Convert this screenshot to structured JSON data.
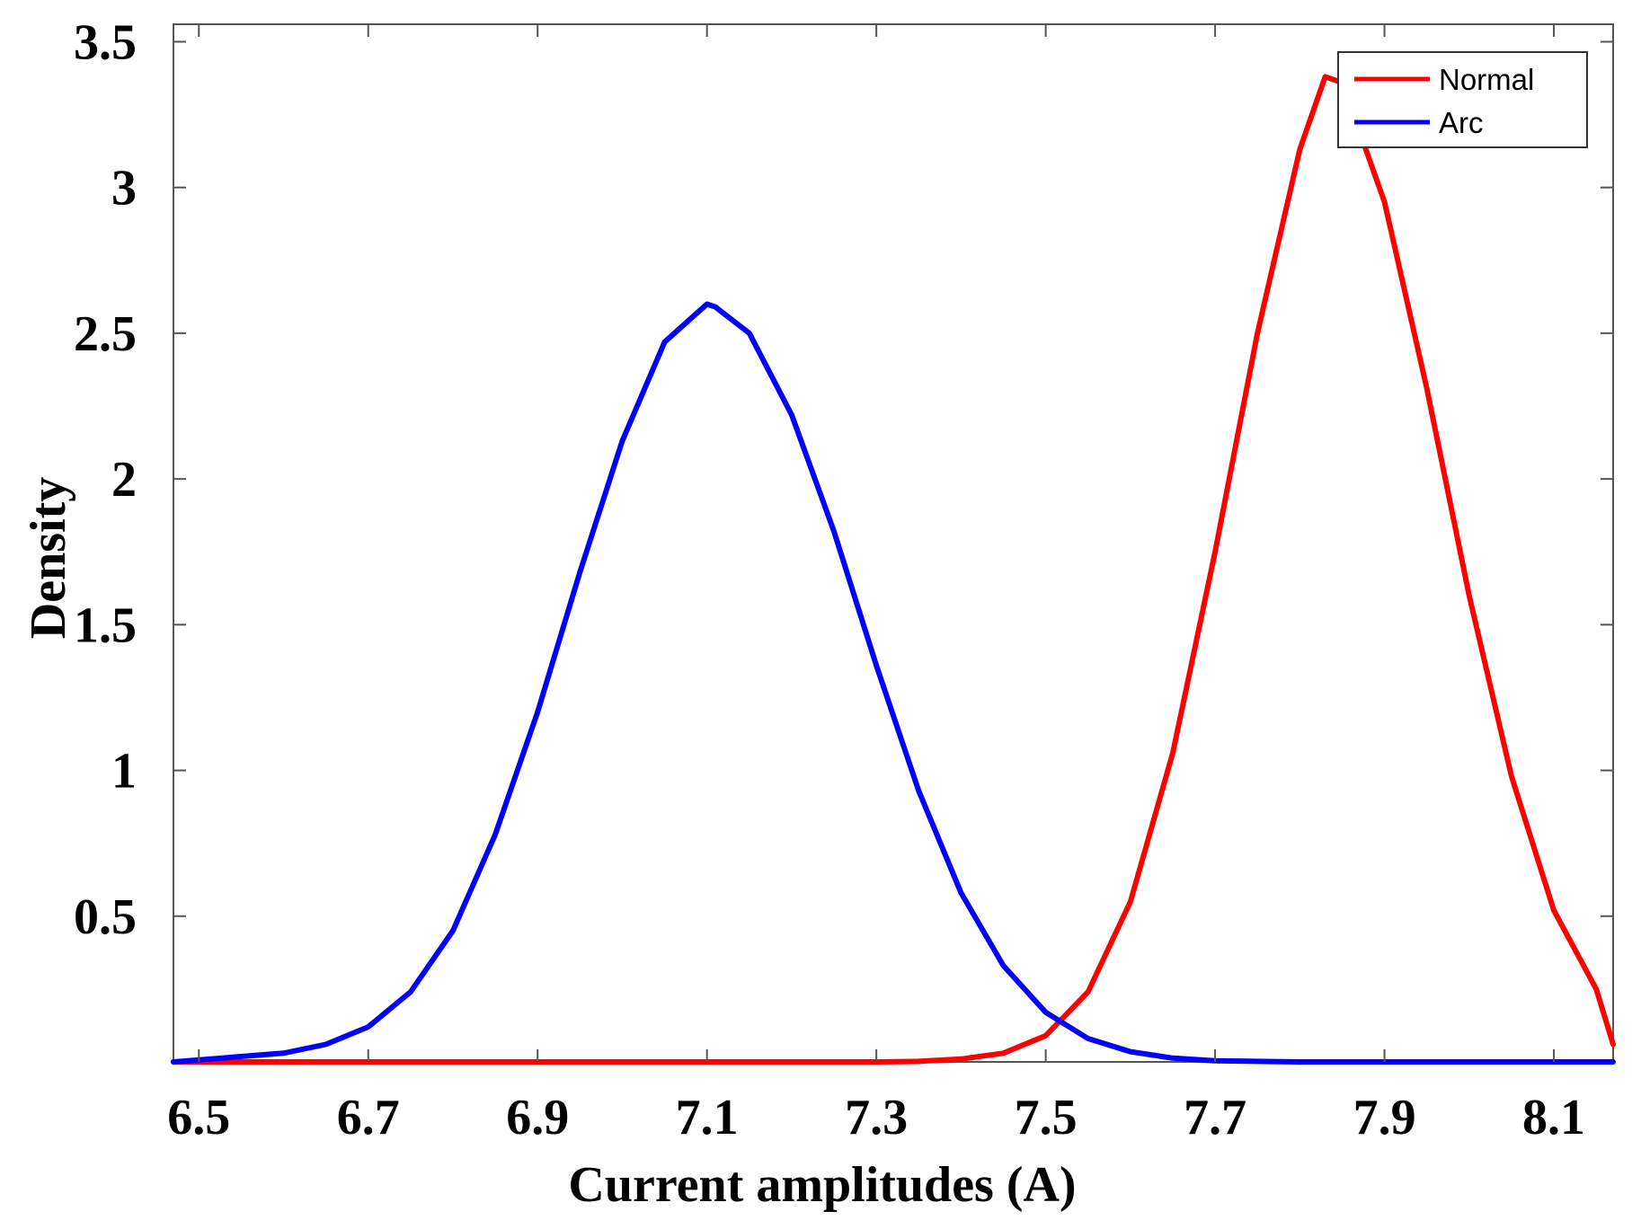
{
  "chart_data": {
    "type": "line",
    "title": "",
    "xlabel": "Current amplitudes (A)",
    "ylabel": "Density",
    "xlim": [
      6.47,
      8.17
    ],
    "ylim": [
      0,
      3.56
    ],
    "xticks": [
      "6.5",
      "6.7",
      "6.9",
      "7.1",
      "7.3",
      "7.5",
      "7.7",
      "7.9",
      "8.1"
    ],
    "yticks": [
      "0.5",
      "1",
      "1.5",
      "2",
      "2.5",
      "3",
      "3.5"
    ],
    "grid": false,
    "legend_position": "top-right",
    "series": [
      {
        "name": "Normal",
        "color": "#ff0000",
        "x": [
          6.47,
          7.0,
          7.2,
          7.3,
          7.35,
          7.4,
          7.45,
          7.5,
          7.55,
          7.6,
          7.65,
          7.7,
          7.75,
          7.8,
          7.83,
          7.85,
          7.9,
          7.95,
          8.0,
          8.05,
          8.1,
          8.15,
          8.17
        ],
        "y": [
          0.0,
          0.0,
          0.0,
          0.0,
          0.002,
          0.01,
          0.03,
          0.09,
          0.24,
          0.55,
          1.06,
          1.75,
          2.5,
          3.13,
          3.38,
          3.36,
          2.95,
          2.31,
          1.6,
          0.98,
          0.52,
          0.25,
          0.06
        ]
      },
      {
        "name": "Arc",
        "color": "#0000ff",
        "x": [
          6.47,
          6.6,
          6.65,
          6.7,
          6.75,
          6.8,
          6.85,
          6.9,
          6.95,
          7.0,
          7.05,
          7.1,
          7.11,
          7.15,
          7.2,
          7.25,
          7.3,
          7.35,
          7.4,
          7.45,
          7.5,
          7.55,
          7.6,
          7.65,
          7.7,
          7.8,
          8.17
        ],
        "y": [
          0.0,
          0.03,
          0.06,
          0.12,
          0.24,
          0.45,
          0.78,
          1.2,
          1.68,
          2.13,
          2.47,
          2.6,
          2.59,
          2.5,
          2.22,
          1.82,
          1.36,
          0.93,
          0.58,
          0.33,
          0.17,
          0.08,
          0.035,
          0.013,
          0.004,
          0.0,
          0.0
        ]
      }
    ]
  }
}
